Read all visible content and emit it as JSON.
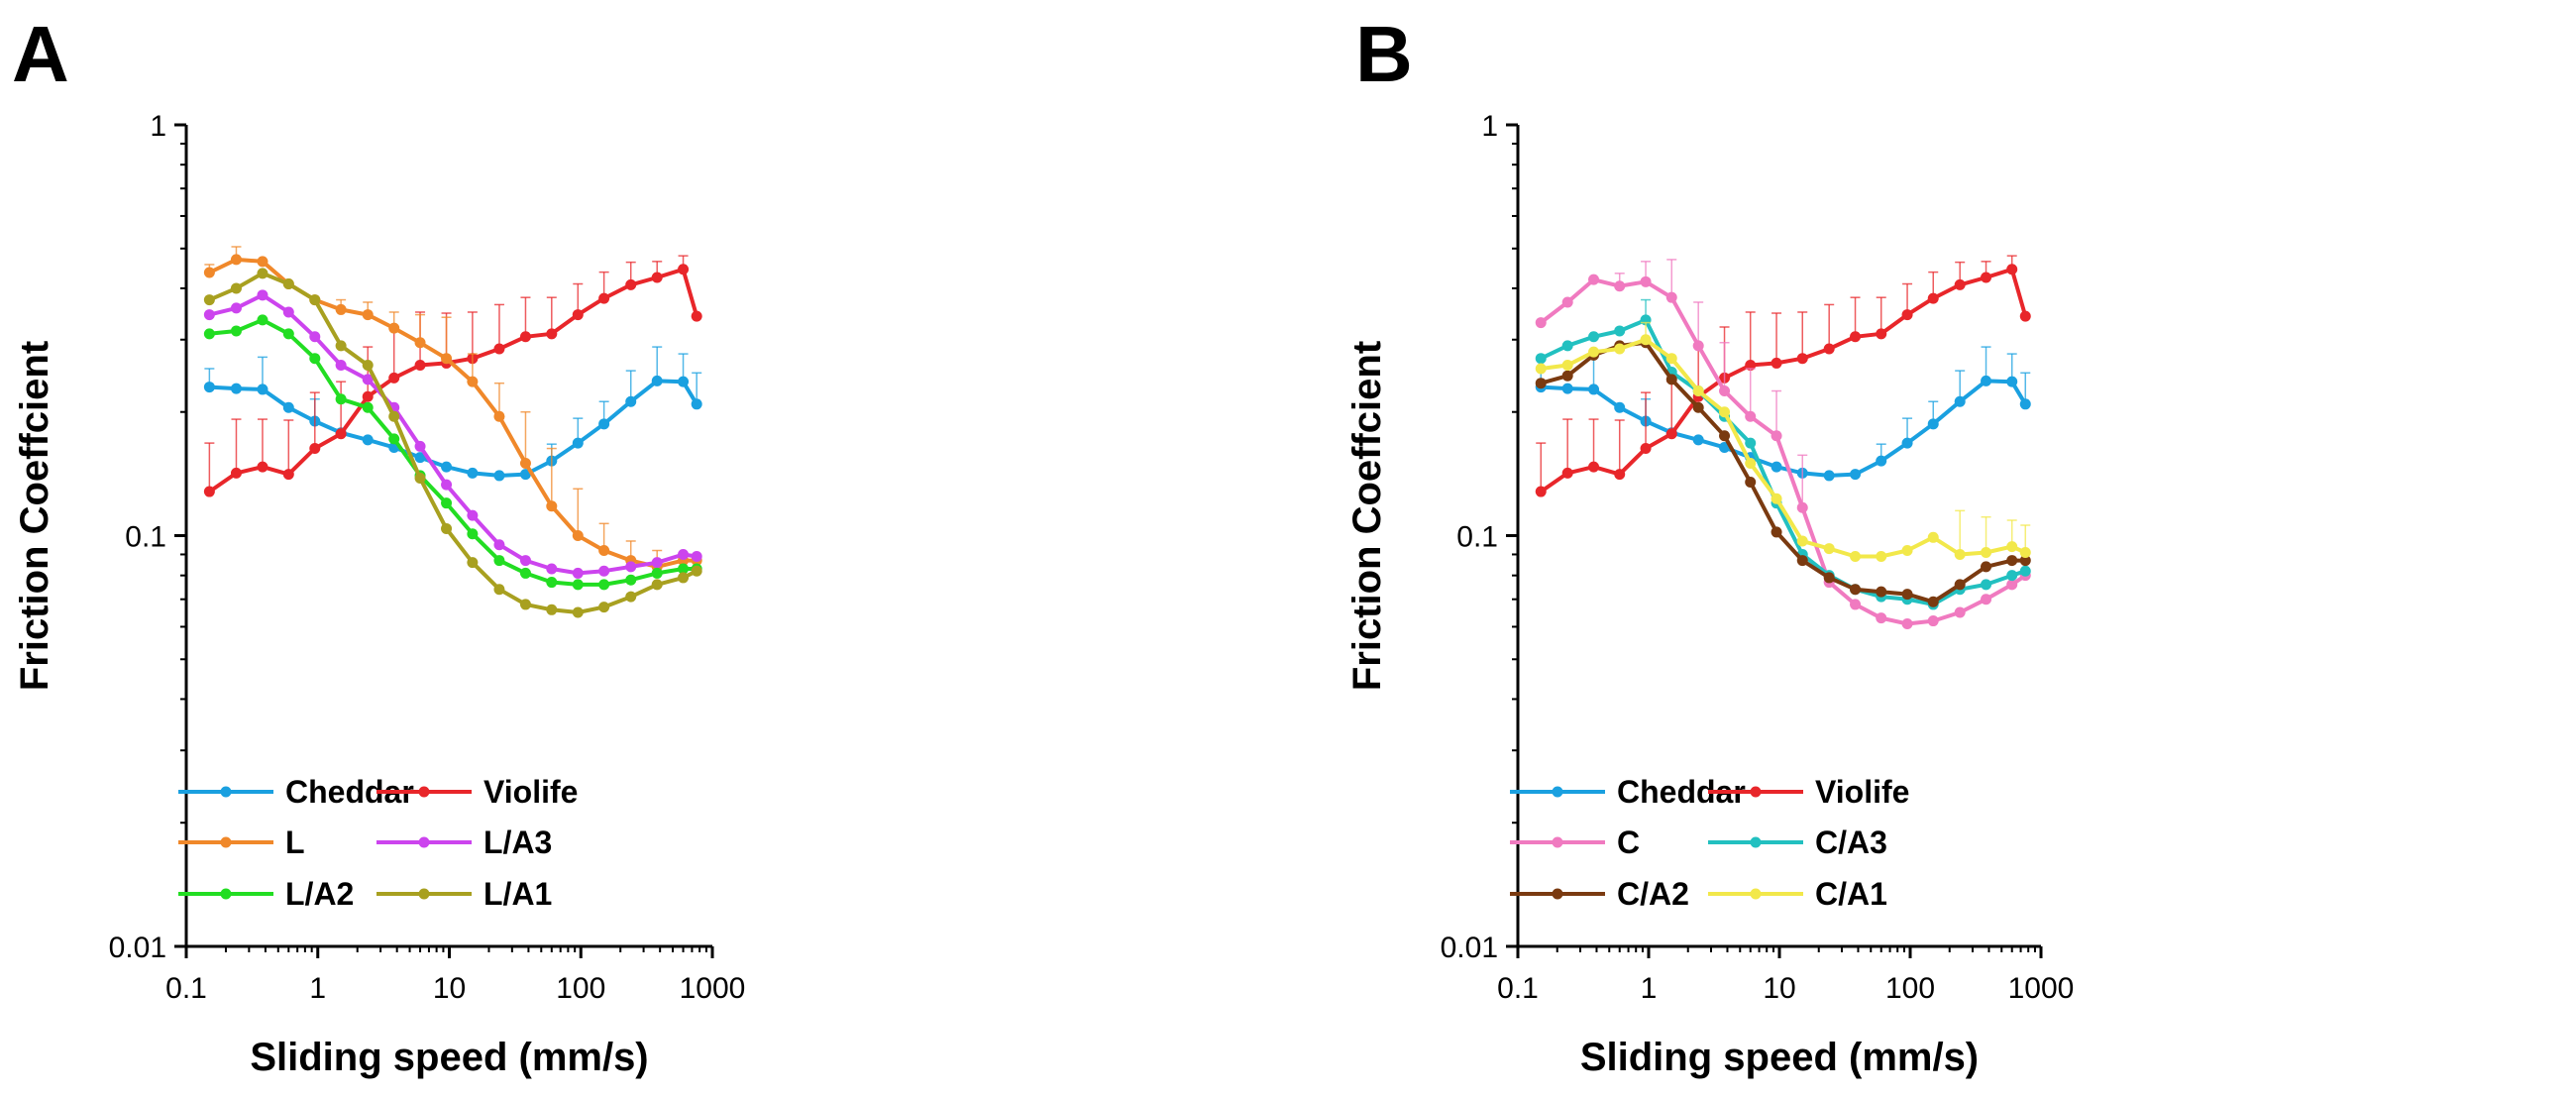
{
  "panels": [
    {
      "letter": "A"
    },
    {
      "letter": "B"
    }
  ],
  "chart_data": [
    {
      "type": "line",
      "panel": "A",
      "xscale": "log",
      "yscale": "log",
      "xlim": [
        0.1,
        1000
      ],
      "ylim": [
        0.01,
        1
      ],
      "xticks": [
        "0.1",
        "1",
        "10",
        "100",
        "1000"
      ],
      "yticks": [
        "0.01",
        "0.1",
        "1"
      ],
      "xlabel": "Sliding speed (mm/s)",
      "ylabel": "Friction Coeffcient",
      "legend_position": "bottom-left",
      "x": [
        0.15,
        0.24,
        0.38,
        0.6,
        0.95,
        1.5,
        2.4,
        3.8,
        6,
        9.5,
        15,
        24,
        38,
        60,
        95,
        150,
        240,
        380,
        600,
        760
      ],
      "series": [
        {
          "name": "Cheddar",
          "color": "#1AA0E0",
          "values": [
            0.23,
            0.228,
            0.227,
            0.205,
            0.19,
            0.178,
            0.171,
            0.164,
            0.155,
            0.147,
            0.142,
            0.14,
            0.141,
            0.152,
            0.168,
            0.187,
            0.212,
            0.238,
            0.237,
            0.209
          ],
          "errors": [
            0.025,
            0,
            0.045,
            0,
            0.025,
            0,
            0,
            0,
            0,
            0,
            0,
            0,
            0,
            0.015,
            0.025,
            0.025,
            0.04,
            0.05,
            0.04,
            0.04
          ]
        },
        {
          "name": "Violife",
          "color": "#E8262A",
          "values": [
            0.128,
            0.142,
            0.147,
            0.141,
            0.163,
            0.177,
            0.218,
            0.242,
            0.26,
            0.263,
            0.27,
            0.285,
            0.305,
            0.31,
            0.345,
            0.378,
            0.408,
            0.425,
            0.445,
            0.342
          ],
          "errors": [
            0.04,
            0.05,
            0.045,
            0.05,
            0.06,
            0.06,
            0.07,
            0.08,
            0.09,
            0.085,
            0.08,
            0.08,
            0.075,
            0.07,
            0.065,
            0.06,
            0.055,
            0.04,
            0.035,
            0
          ]
        },
        {
          "name": "L",
          "color": "#F0882A",
          "values": [
            0.437,
            0.47,
            0.465,
            0.41,
            0.375,
            0.355,
            0.345,
            0.32,
            0.295,
            0.27,
            0.237,
            0.195,
            0.15,
            0.118,
            0.1,
            0.092,
            0.087,
            0.084,
            0.087,
            0.087
          ],
          "errors": [
            0.02,
            0.035,
            0,
            0,
            0,
            0.02,
            0.025,
            0.03,
            0.05,
            0.07,
            0.04,
            0.04,
            0.05,
            0.045,
            0.03,
            0.015,
            0.01,
            0.008,
            0,
            0
          ]
        },
        {
          "name": "L/A3",
          "color": "#CC44EE",
          "values": [
            0.345,
            0.358,
            0.385,
            0.35,
            0.305,
            0.26,
            0.24,
            0.205,
            0.165,
            0.133,
            0.112,
            0.095,
            0.087,
            0.083,
            0.081,
            0.082,
            0.084,
            0.086,
            0.09,
            0.089
          ],
          "errors": [
            0,
            0,
            0,
            0,
            0,
            0,
            0,
            0,
            0,
            0,
            0,
            0,
            0,
            0,
            0,
            0,
            0,
            0,
            0,
            0
          ]
        },
        {
          "name": "L/A2",
          "color": "#22DD22",
          "values": [
            0.31,
            0.315,
            0.335,
            0.31,
            0.27,
            0.215,
            0.205,
            0.172,
            0.14,
            0.12,
            0.101,
            0.087,
            0.081,
            0.077,
            0.076,
            0.076,
            0.078,
            0.081,
            0.083,
            0.083
          ],
          "errors": [
            0,
            0,
            0,
            0,
            0,
            0,
            0,
            0,
            0,
            0,
            0,
            0,
            0,
            0,
            0,
            0,
            0,
            0,
            0,
            0
          ]
        },
        {
          "name": "L/A1",
          "color": "#A8A020",
          "values": [
            0.375,
            0.4,
            0.435,
            0.41,
            0.375,
            0.29,
            0.26,
            0.195,
            0.138,
            0.104,
            0.086,
            0.074,
            0.068,
            0.066,
            0.065,
            0.067,
            0.071,
            0.076,
            0.079,
            0.082
          ],
          "errors": [
            0,
            0,
            0,
            0,
            0,
            0,
            0,
            0,
            0,
            0,
            0,
            0,
            0,
            0,
            0,
            0,
            0,
            0,
            0,
            0
          ]
        }
      ]
    },
    {
      "type": "line",
      "panel": "B",
      "xscale": "log",
      "yscale": "log",
      "xlim": [
        0.1,
        1000
      ],
      "ylim": [
        0.01,
        1
      ],
      "xticks": [
        "0.1",
        "1",
        "10",
        "100",
        "1000"
      ],
      "yticks": [
        "0.01",
        "0.1",
        "1"
      ],
      "xlabel": "Sliding speed (mm/s)",
      "ylabel": "Friction Coeffcient",
      "legend_position": "bottom-left",
      "x": [
        0.15,
        0.24,
        0.38,
        0.6,
        0.95,
        1.5,
        2.4,
        3.8,
        6,
        9.5,
        15,
        24,
        38,
        60,
        95,
        150,
        240,
        380,
        600,
        760
      ],
      "series": [
        {
          "name": "Cheddar",
          "color": "#1AA0E0",
          "values": [
            0.23,
            0.228,
            0.227,
            0.205,
            0.19,
            0.178,
            0.171,
            0.164,
            0.155,
            0.147,
            0.142,
            0.14,
            0.141,
            0.152,
            0.168,
            0.187,
            0.212,
            0.238,
            0.237,
            0.209
          ],
          "errors": [
            0.025,
            0,
            0.045,
            0,
            0.025,
            0,
            0,
            0,
            0,
            0,
            0,
            0,
            0,
            0.015,
            0.025,
            0.025,
            0.04,
            0.05,
            0.04,
            0.04
          ]
        },
        {
          "name": "Violife",
          "color": "#E8262A",
          "values": [
            0.128,
            0.142,
            0.147,
            0.141,
            0.163,
            0.177,
            0.218,
            0.242,
            0.26,
            0.263,
            0.27,
            0.285,
            0.305,
            0.31,
            0.345,
            0.378,
            0.408,
            0.425,
            0.445,
            0.342
          ],
          "errors": [
            0.04,
            0.05,
            0.045,
            0.05,
            0.06,
            0.06,
            0.07,
            0.08,
            0.09,
            0.085,
            0.08,
            0.08,
            0.075,
            0.07,
            0.065,
            0.06,
            0.055,
            0.04,
            0.035,
            0
          ]
        },
        {
          "name": "C",
          "color": "#F07AC0",
          "values": [
            0.33,
            0.37,
            0.42,
            0.405,
            0.415,
            0.38,
            0.29,
            0.225,
            0.195,
            0.175,
            0.117,
            0.077,
            0.068,
            0.063,
            0.061,
            0.062,
            0.065,
            0.07,
            0.076,
            0.08
          ],
          "errors": [
            0,
            0,
            0,
            0.03,
            0.05,
            0.09,
            0.08,
            0.07,
            0.06,
            0.05,
            0.04,
            0,
            0,
            0,
            0,
            0,
            0,
            0,
            0,
            0
          ]
        },
        {
          "name": "C/A3",
          "color": "#22C0C0",
          "values": [
            0.27,
            0.29,
            0.305,
            0.315,
            0.335,
            0.25,
            0.225,
            0.195,
            0.168,
            0.12,
            0.09,
            0.08,
            0.074,
            0.071,
            0.07,
            0.068,
            0.074,
            0.076,
            0.08,
            0.082
          ],
          "errors": [
            0,
            0,
            0,
            0,
            0.04,
            0,
            0,
            0,
            0,
            0,
            0,
            0,
            0,
            0,
            0,
            0,
            0,
            0,
            0,
            0
          ]
        },
        {
          "name": "C/A2",
          "color": "#7A3A10",
          "values": [
            0.235,
            0.245,
            0.275,
            0.29,
            0.295,
            0.24,
            0.205,
            0.175,
            0.135,
            0.102,
            0.087,
            0.079,
            0.074,
            0.073,
            0.072,
            0.069,
            0.076,
            0.084,
            0.087,
            0.087
          ],
          "errors": [
            0,
            0,
            0,
            0,
            0,
            0,
            0,
            0,
            0,
            0,
            0,
            0,
            0,
            0,
            0,
            0,
            0,
            0,
            0,
            0
          ]
        },
        {
          "name": "C/A1",
          "color": "#F2E84A",
          "values": [
            0.255,
            0.26,
            0.28,
            0.285,
            0.3,
            0.27,
            0.225,
            0.2,
            0.15,
            0.123,
            0.097,
            0.093,
            0.089,
            0.089,
            0.092,
            0.099,
            0.09,
            0.091,
            0.094,
            0.091
          ],
          "errors": [
            0,
            0,
            0,
            0,
            0.03,
            0,
            0,
            0,
            0,
            0,
            0,
            0,
            0,
            0,
            0,
            0,
            0.025,
            0.02,
            0.015,
            0.015
          ]
        }
      ]
    }
  ]
}
